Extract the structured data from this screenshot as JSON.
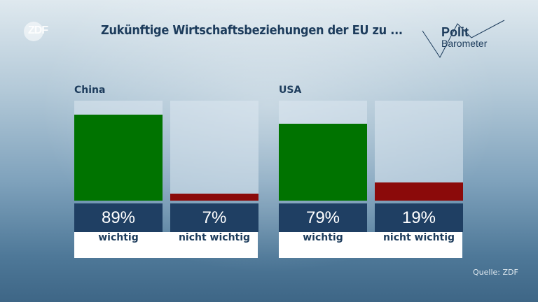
{
  "header": {
    "logo": "ZDF",
    "title": "Zukünftige Wirtschaftsbeziehungen der EU zu ...",
    "brand_line1": "Polit",
    "brand_line2": "Barometer"
  },
  "source": "Quelle: ZDF",
  "chart_data": {
    "type": "bar",
    "title": "Zukünftige Wirtschaftsbeziehungen der EU zu ...",
    "ylim": [
      0,
      100
    ],
    "categories": [
      "wichtig",
      "nicht wichtig"
    ],
    "groups": [
      {
        "name": "China",
        "values": [
          89,
          7
        ],
        "labels": [
          "89%",
          "7%"
        ]
      },
      {
        "name": "USA",
        "values": [
          79,
          19
        ],
        "labels": [
          "79%",
          "19%"
        ]
      }
    ],
    "colors": {
      "wichtig": "#007300",
      "nicht wichtig": "#8b0a0a"
    }
  }
}
